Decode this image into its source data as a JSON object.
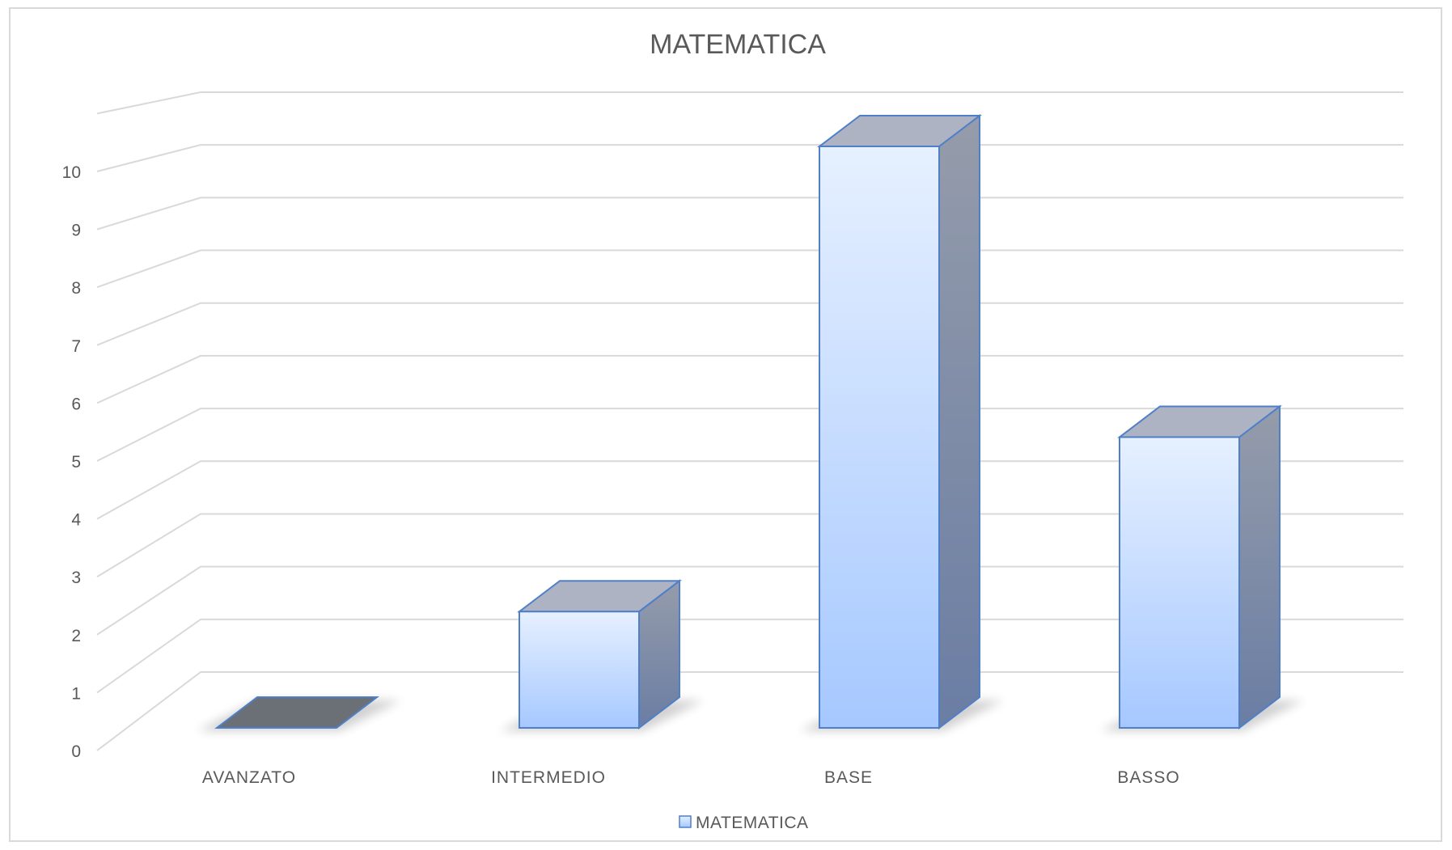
{
  "chart_data": {
    "type": "bar",
    "style": "3d-column",
    "title": "MATEMATICA",
    "xlabel": "",
    "ylabel": "",
    "categories": [
      "AVANZATO",
      "INTERMEDIO",
      "BASE",
      "BASSO"
    ],
    "series": [
      {
        "name": "MATEMATICA",
        "values": [
          0,
          2,
          10,
          5
        ],
        "color": "#a6c8ff"
      }
    ],
    "yticks": [
      "0",
      "1",
      "2",
      "3",
      "4",
      "5",
      "6",
      "7",
      "8",
      "9",
      "10"
    ],
    "ylim": [
      0,
      10
    ],
    "grid": true,
    "legend": "bottom",
    "colors": {
      "face_top": "#e6f0ff",
      "face_bottom": "#a6c8ff",
      "side": "#7a87a6",
      "top": "#adb3c3",
      "edge": "#4f7fc9",
      "zero_bar": "#6b7076"
    }
  }
}
